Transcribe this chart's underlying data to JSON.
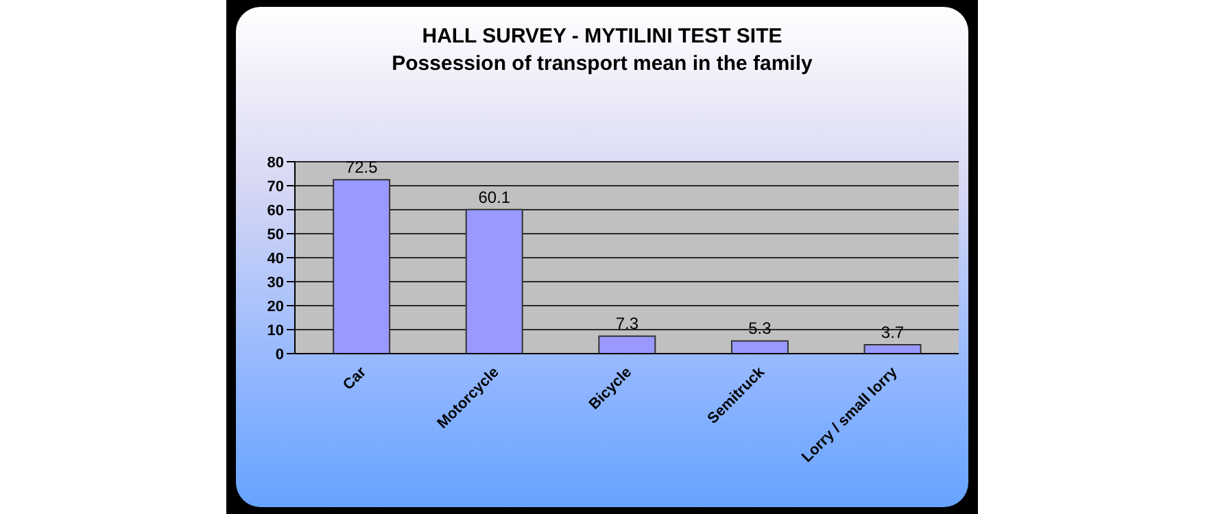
{
  "chart_data": {
    "type": "bar",
    "title": "HALL SURVEY - MYTILINI TEST SITE",
    "subtitle": "Possession of transport mean in the family",
    "categories": [
      "Car",
      "Motorcycle",
      "Bicycle",
      "Semitruck",
      "Lorry / small lorry"
    ],
    "values": [
      72.5,
      60.1,
      7.3,
      5.3,
      3.7
    ],
    "color": "#9999ff",
    "ylim": [
      0,
      80
    ],
    "yticks": [
      0,
      10,
      20,
      30,
      40,
      50,
      60,
      70,
      80
    ],
    "grid": "y",
    "data_labels": true
  }
}
